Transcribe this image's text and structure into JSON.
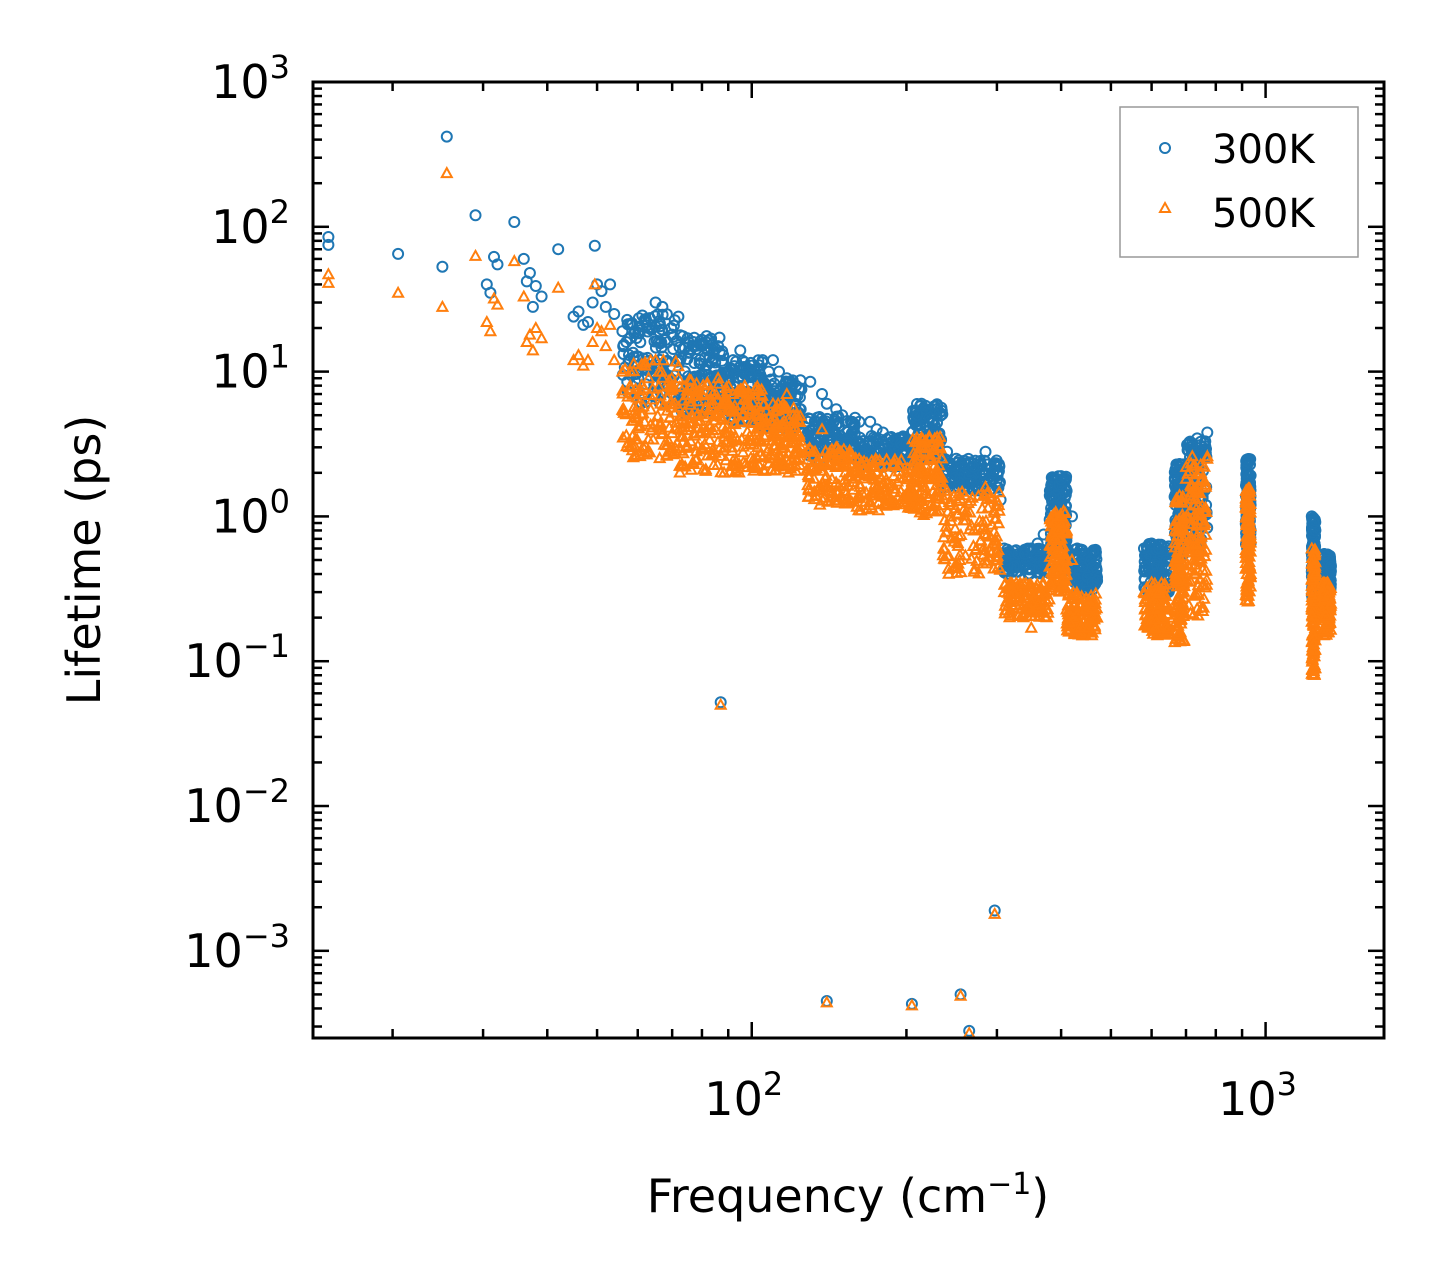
{
  "chart_data": {
    "type": "scatter",
    "title": "",
    "xlabel": "Frequency (cm",
    "xlabel_sup": "−1",
    "xlabel_end": ")",
    "ylabel": "Lifetime (ps)",
    "xscale": "log",
    "yscale": "log",
    "xlim": [
      14,
      1700
    ],
    "ylim": [
      0.00025,
      1000
    ],
    "x_ticks": [
      {
        "base": "10",
        "exp": "2",
        "value": 100
      },
      {
        "base": "10",
        "exp": "3",
        "value": 1000
      }
    ],
    "y_ticks": [
      {
        "base": "10",
        "exp": "3",
        "value": 1000
      },
      {
        "base": "10",
        "exp": "2",
        "value": 100
      },
      {
        "base": "10",
        "exp": "1",
        "value": 10
      },
      {
        "base": "10",
        "exp": "0",
        "value": 1
      },
      {
        "base": "10",
        "exp": "−1",
        "value": 0.1
      },
      {
        "base": "10",
        "exp": "−2",
        "value": 0.01
      },
      {
        "base": "10",
        "exp": "−3",
        "value": 0.001
      }
    ],
    "legend": {
      "position": "top-right",
      "entries": [
        "300K",
        "500K"
      ]
    },
    "colors": {
      "s300K": "#1f77b4",
      "s500K": "#ff7f0e"
    },
    "series": [
      {
        "name": "300K",
        "marker": "circle",
        "points": [
          [
            15,
            85
          ],
          [
            15,
            75
          ],
          [
            20.5,
            65
          ],
          [
            25,
            53
          ],
          [
            25.5,
            420
          ],
          [
            29,
            120
          ],
          [
            30.5,
            40
          ],
          [
            31,
            35
          ],
          [
            31.5,
            62
          ],
          [
            32,
            55
          ],
          [
            34.5,
            108
          ],
          [
            36,
            60
          ],
          [
            36.5,
            42
          ],
          [
            37,
            48
          ],
          [
            37.5,
            28
          ],
          [
            38,
            39
          ],
          [
            39,
            33
          ],
          [
            42,
            70
          ],
          [
            45,
            24
          ],
          [
            46,
            26
          ],
          [
            47,
            21
          ],
          [
            48,
            22
          ],
          [
            49,
            30
          ],
          [
            49.5,
            74
          ],
          [
            50,
            40
          ],
          [
            51,
            36
          ],
          [
            52,
            28
          ],
          [
            53,
            40
          ],
          [
            54,
            25
          ],
          [
            56,
            19
          ],
          [
            57,
            16
          ],
          [
            58,
            17
          ],
          [
            62,
            22
          ],
          [
            63,
            20
          ],
          [
            65,
            30
          ],
          [
            66,
            19
          ],
          [
            67,
            28
          ],
          [
            70,
            18
          ],
          [
            72,
            24
          ],
          [
            75,
            17
          ],
          [
            77,
            16
          ],
          [
            80,
            15
          ],
          [
            82,
            14
          ],
          [
            86,
            15
          ],
          [
            88,
            13
          ],
          [
            92,
            12
          ],
          [
            95,
            14
          ],
          [
            100,
            11
          ],
          [
            105,
            12
          ],
          [
            108,
            10
          ],
          [
            110,
            12
          ],
          [
            113,
            10
          ],
          [
            117,
            9
          ],
          [
            122,
            8
          ],
          [
            130,
            8.5
          ],
          [
            137,
            7
          ],
          [
            140,
            6
          ],
          [
            146,
            5.5
          ],
          [
            150,
            5
          ],
          [
            156,
            4.5
          ],
          [
            162,
            4.5
          ],
          [
            170,
            4.5
          ],
          [
            175,
            4
          ],
          [
            180,
            3.8
          ],
          [
            185,
            3.5
          ],
          [
            190,
            3.4
          ],
          [
            195,
            3.2
          ],
          [
            200,
            3.2
          ],
          [
            205,
            3.8
          ],
          [
            210,
            5
          ],
          [
            214,
            6
          ],
          [
            218,
            5.5
          ],
          [
            222,
            4.8
          ],
          [
            226,
            4
          ],
          [
            232,
            3.2
          ],
          [
            240,
            2.8
          ],
          [
            250,
            2.5
          ],
          [
            260,
            2.3
          ],
          [
            270,
            2.2
          ],
          [
            285,
            2.8
          ],
          [
            295,
            2
          ],
          [
            300,
            1.6
          ],
          [
            305,
            1.3
          ],
          [
            310,
            0.6
          ],
          [
            320,
            0.55
          ],
          [
            330,
            0.55
          ],
          [
            340,
            0.55
          ],
          [
            350,
            0.6
          ],
          [
            360,
            0.65
          ],
          [
            370,
            0.75
          ],
          [
            380,
            0.95
          ],
          [
            390,
            1.4
          ],
          [
            400,
            1.8
          ],
          [
            410,
            1.5
          ],
          [
            420,
            1
          ],
          [
            430,
            0.6
          ],
          [
            440,
            0.45
          ],
          [
            450,
            0.38
          ],
          [
            460,
            0.35
          ],
          [
            470,
            0.36
          ],
          [
            580,
            0.6
          ],
          [
            600,
            0.65
          ],
          [
            620,
            0.6
          ],
          [
            640,
            0.5
          ],
          [
            660,
            0.4
          ],
          [
            680,
            2.3
          ],
          [
            690,
            1.5
          ],
          [
            700,
            1.2
          ],
          [
            720,
            1.3
          ],
          [
            740,
            2.2
          ],
          [
            760,
            3.2
          ],
          [
            770,
            3.8
          ],
          [
            920,
            2.4
          ],
          [
            925,
            2
          ],
          [
            930,
            1.6
          ],
          [
            935,
            1.2
          ],
          [
            1230,
            1.0
          ],
          [
            1240,
            0.9
          ],
          [
            1250,
            0.8
          ],
          [
            1300,
            0.55
          ],
          [
            1320,
            0.5
          ],
          [
            1340,
            0.45
          ],
          [
            87,
            0.052
          ],
          [
            140,
            0.00045
          ],
          [
            205,
            0.00043
          ],
          [
            255,
            0.0005
          ],
          [
            265,
            0.00028
          ],
          [
            297,
            0.0019
          ]
        ],
        "clusters": [
          [
            56,
            72,
            6,
            25
          ],
          [
            72,
            88,
            5,
            18
          ],
          [
            88,
            105,
            4.5,
            12
          ],
          [
            105,
            125,
            4,
            9
          ],
          [
            128,
            160,
            2.5,
            5
          ],
          [
            160,
            205,
            2.2,
            3.6
          ],
          [
            205,
            235,
            2.5,
            6
          ],
          [
            235,
            305,
            1.5,
            2.5
          ],
          [
            310,
            380,
            0.4,
            0.6
          ],
          [
            380,
            410,
            0.6,
            1.9
          ],
          [
            410,
            470,
            0.3,
            0.6
          ],
          [
            580,
            650,
            0.3,
            0.65
          ],
          [
            665,
            695,
            0.5,
            2.3
          ],
          [
            700,
            770,
            0.6,
            3.5
          ],
          [
            915,
            935,
            0.6,
            2.5
          ],
          [
            1230,
            1250,
            0.25,
            1.0
          ],
          [
            1290,
            1340,
            0.3,
            0.55
          ]
        ]
      },
      {
        "name": "500K",
        "marker": "triangle",
        "points": [
          [
            15,
            47
          ],
          [
            15,
            41
          ],
          [
            20.5,
            35
          ],
          [
            25,
            28
          ],
          [
            25.5,
            235
          ],
          [
            29,
            63
          ],
          [
            30.5,
            22
          ],
          [
            31,
            19
          ],
          [
            31.5,
            32
          ],
          [
            32,
            29
          ],
          [
            34.5,
            58
          ],
          [
            36,
            33
          ],
          [
            36.5,
            16
          ],
          [
            37,
            18
          ],
          [
            37.5,
            14
          ],
          [
            38,
            20
          ],
          [
            39,
            17
          ],
          [
            42,
            38
          ],
          [
            45,
            12
          ],
          [
            46,
            13
          ],
          [
            47,
            11
          ],
          [
            48,
            12
          ],
          [
            49,
            16
          ],
          [
            49.5,
            40
          ],
          [
            50,
            20
          ],
          [
            51,
            19
          ],
          [
            52,
            15
          ],
          [
            53,
            21
          ],
          [
            54,
            12
          ],
          [
            56,
            10
          ],
          [
            58,
            8
          ],
          [
            62,
            11
          ],
          [
            63,
            9
          ],
          [
            65,
            12
          ],
          [
            66,
            10
          ],
          [
            70,
            8
          ],
          [
            72,
            9
          ],
          [
            80,
            7
          ],
          [
            86,
            9
          ],
          [
            92,
            7
          ],
          [
            95,
            7.5
          ],
          [
            110,
            6
          ],
          [
            117,
            7
          ],
          [
            122,
            5
          ],
          [
            137,
            4
          ],
          [
            146,
            3
          ],
          [
            150,
            2.5
          ],
          [
            160,
            2
          ],
          [
            170,
            1.9
          ],
          [
            180,
            1.7
          ],
          [
            200,
            2
          ],
          [
            210,
            2.8
          ],
          [
            214,
            3.5
          ],
          [
            218,
            3
          ],
          [
            226,
            2.2
          ],
          [
            240,
            1.5
          ],
          [
            260,
            1.4
          ],
          [
            285,
            1.6
          ],
          [
            300,
            0.5
          ],
          [
            310,
            0.3
          ],
          [
            320,
            0.28
          ],
          [
            330,
            0.27
          ],
          [
            340,
            0.27
          ],
          [
            350,
            0.17
          ],
          [
            360,
            0.3
          ],
          [
            380,
            0.45
          ],
          [
            390,
            0.7
          ],
          [
            400,
            1.0
          ],
          [
            410,
            0.8
          ],
          [
            420,
            0.5
          ],
          [
            440,
            0.25
          ],
          [
            460,
            0.2
          ],
          [
            470,
            0.2
          ],
          [
            580,
            0.3
          ],
          [
            600,
            0.35
          ],
          [
            620,
            0.3
          ],
          [
            640,
            0.25
          ],
          [
            660,
            0.2
          ],
          [
            680,
            1.4
          ],
          [
            690,
            0.8
          ],
          [
            700,
            0.6
          ],
          [
            720,
            0.7
          ],
          [
            740,
            1.2
          ],
          [
            760,
            2.2
          ],
          [
            770,
            2.6
          ],
          [
            920,
            1.5
          ],
          [
            925,
            1.0
          ],
          [
            930,
            0.7
          ],
          [
            935,
            0.4
          ],
          [
            1230,
            0.6
          ],
          [
            1240,
            0.5
          ],
          [
            1250,
            0.4
          ],
          [
            1300,
            0.3
          ],
          [
            1320,
            0.28
          ],
          [
            1340,
            0.25
          ],
          [
            87,
            0.05
          ],
          [
            140,
            0.00044
          ],
          [
            205,
            0.00042
          ],
          [
            255,
            0.00049
          ],
          [
            265,
            0.00027
          ],
          [
            297,
            0.0018
          ]
        ],
        "clusters": [
          [
            56,
            72,
            2.5,
            12
          ],
          [
            72,
            88,
            2,
            9
          ],
          [
            88,
            105,
            2,
            8
          ],
          [
            105,
            125,
            2,
            6
          ],
          [
            128,
            160,
            1.2,
            3
          ],
          [
            160,
            205,
            1.1,
            2.5
          ],
          [
            205,
            235,
            1.0,
            3.6
          ],
          [
            235,
            305,
            0.4,
            1.5
          ],
          [
            310,
            380,
            0.2,
            0.35
          ],
          [
            380,
            410,
            0.3,
            1.1
          ],
          [
            410,
            470,
            0.15,
            0.3
          ],
          [
            580,
            650,
            0.15,
            0.35
          ],
          [
            665,
            695,
            0.13,
            1.4
          ],
          [
            700,
            770,
            0.2,
            2.6
          ],
          [
            915,
            935,
            0.25,
            1.6
          ],
          [
            1230,
            1250,
            0.08,
            0.6
          ],
          [
            1290,
            1340,
            0.15,
            0.35
          ]
        ]
      }
    ]
  }
}
